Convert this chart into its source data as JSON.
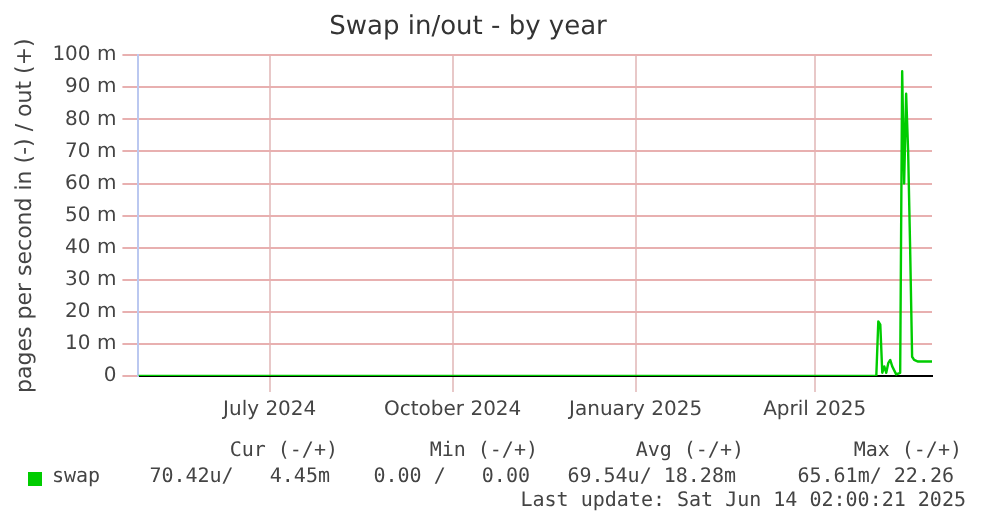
{
  "chart_data": {
    "type": "line",
    "title": "Swap in/out - by year",
    "ylabel": "pages per second in (-) / out (+)",
    "x": [
      "2024-05-11",
      "2025-05-17",
      "2025-05-18",
      "2025-05-19",
      "2025-05-20",
      "2025-05-21",
      "2025-05-22",
      "2025-05-23",
      "2025-05-24",
      "2025-05-25",
      "2025-05-27",
      "2025-05-29",
      "2025-05-30",
      "2025-05-31",
      "2025-06-01",
      "2025-06-02",
      "2025-06-03",
      "2025-06-04",
      "2025-06-05",
      "2025-06-07",
      "2025-06-14"
    ],
    "series": [
      {
        "name": "swap",
        "color": "#00cc00",
        "values": [
          0,
          0,
          17,
          16,
          1,
          3,
          1,
          4,
          5,
          3,
          0.5,
          1,
          95,
          60,
          88,
          70,
          40,
          6,
          5,
          4.5,
          4.5
        ]
      }
    ],
    "xlim": [
      "2024-05-11",
      "2025-06-14"
    ],
    "xticks": [
      {
        "value": "2024-07-16",
        "label": "July 2024"
      },
      {
        "value": "2024-10-16",
        "label": "October 2024"
      },
      {
        "value": "2025-01-16",
        "label": "January 2025"
      },
      {
        "value": "2025-04-16",
        "label": "April 2025"
      }
    ],
    "ylim": [
      0,
      100
    ],
    "yticks": [
      0,
      {
        "value": 10,
        "label": "10 m"
      },
      {
        "value": 20,
        "label": "20 m"
      },
      {
        "value": 30,
        "label": "30 m"
      },
      {
        "value": 40,
        "label": "40 m"
      },
      {
        "value": 50,
        "label": "50 m"
      },
      {
        "value": 60,
        "label": "60 m"
      },
      {
        "value": 70,
        "label": "70 m"
      },
      {
        "value": 80,
        "label": "80 m"
      },
      {
        "value": 90,
        "label": "90 m"
      },
      {
        "value": 100,
        "label": "100 m"
      }
    ],
    "grid": true,
    "legend": "bottom",
    "marker": "none",
    "line_style": "solid",
    "annotations": [
      "Cur (-/+)",
      "Min (-/+)",
      "Avg (-/+)",
      "Max (-/+)",
      "70.42u/   4.45m",
      "0.00 /   0.00",
      "69.54u/ 18.28m",
      "65.61m/ 22.26",
      "Last update: Sat Jun 14 02:00:21 2025"
    ]
  }
}
